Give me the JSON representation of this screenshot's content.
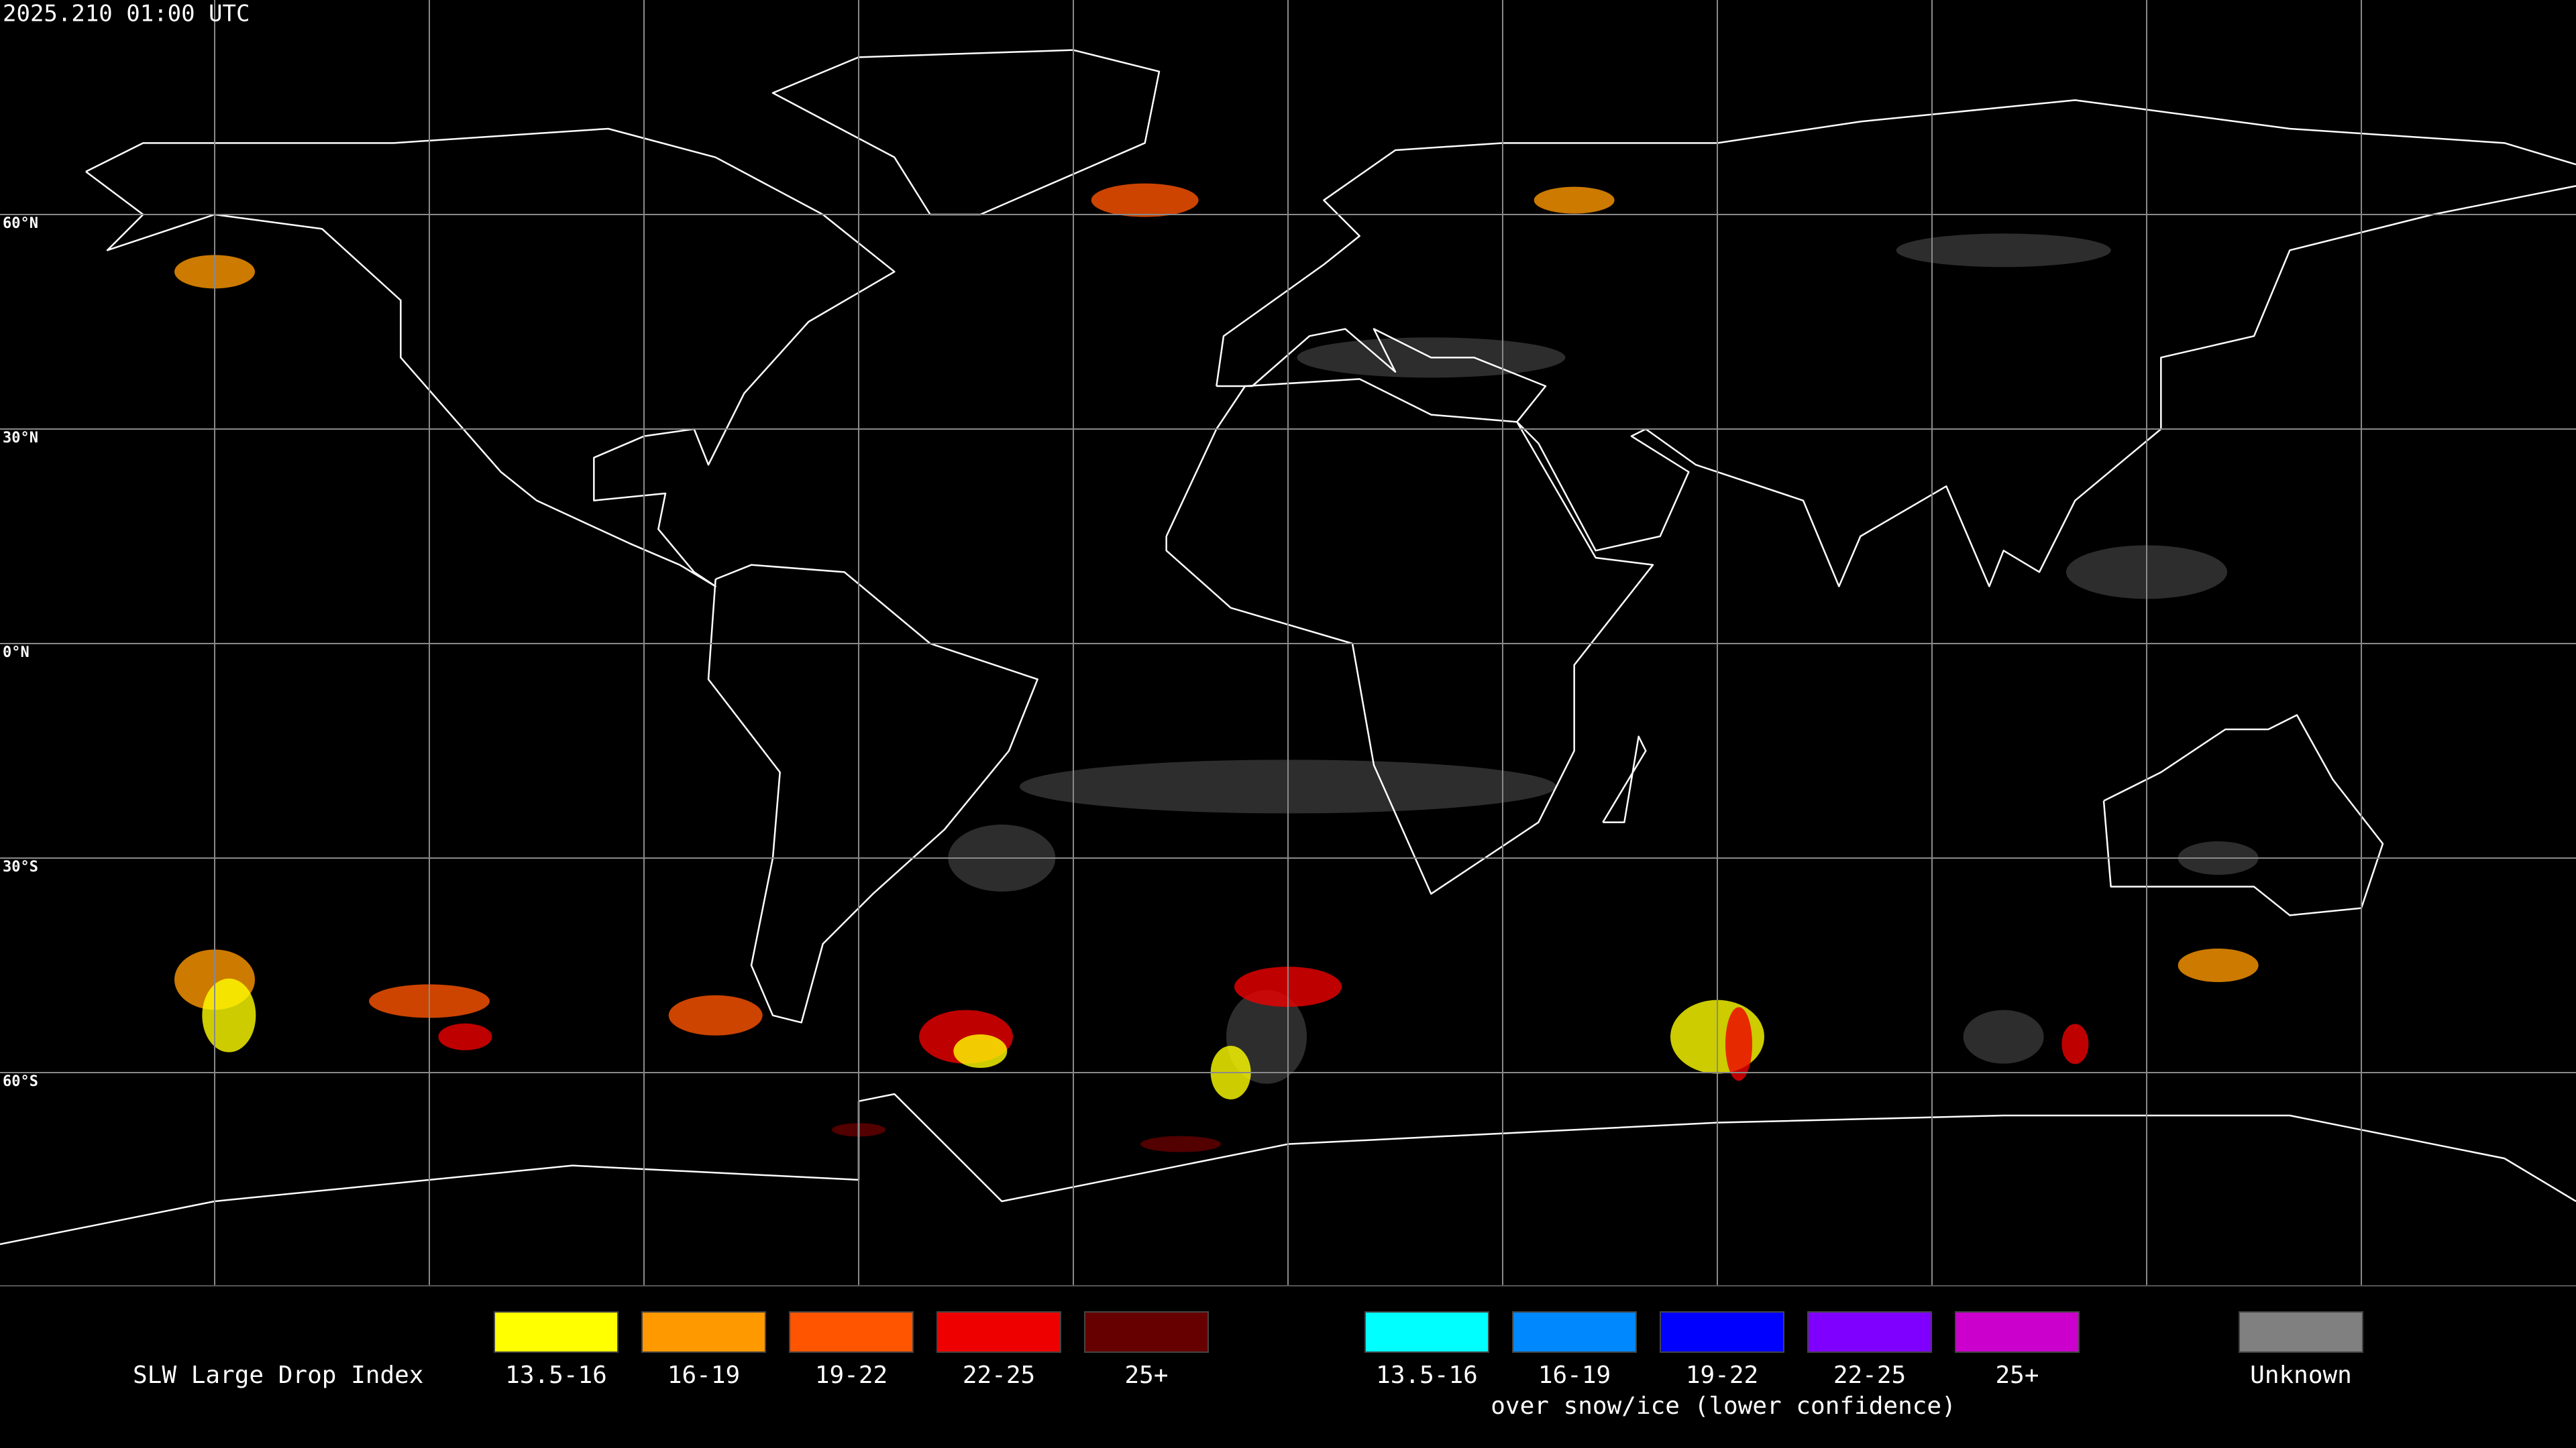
{
  "header": {
    "timestamp": "2025.210 01:00 UTC"
  },
  "map": {
    "latitude_labels": [
      "60°N",
      "30°N",
      "0°N",
      "30°S",
      "60°S"
    ]
  },
  "legend": {
    "title": "SLW Large Drop Index",
    "items": [
      {
        "label": "13.5-16",
        "color": "#ffff00"
      },
      {
        "label": "16-19",
        "color": "#ff9900"
      },
      {
        "label": "19-22",
        "color": "#ff5500"
      },
      {
        "label": "22-25",
        "color": "#ee0000"
      },
      {
        "label": "25+",
        "color": "#660000"
      }
    ],
    "snow_items": [
      {
        "label": "13.5-16",
        "color": "#00ffff"
      },
      {
        "label": "16-19",
        "color": "#0088ff"
      },
      {
        "label": "19-22",
        "color": "#0000ff"
      },
      {
        "label": "22-25",
        "color": "#7f00ff"
      },
      {
        "label": "25+",
        "color": "#cc00cc"
      }
    ],
    "snow_note": "over snow/ice (lower confidence)",
    "unknown": {
      "label": "Unknown",
      "color": "#808080"
    }
  }
}
